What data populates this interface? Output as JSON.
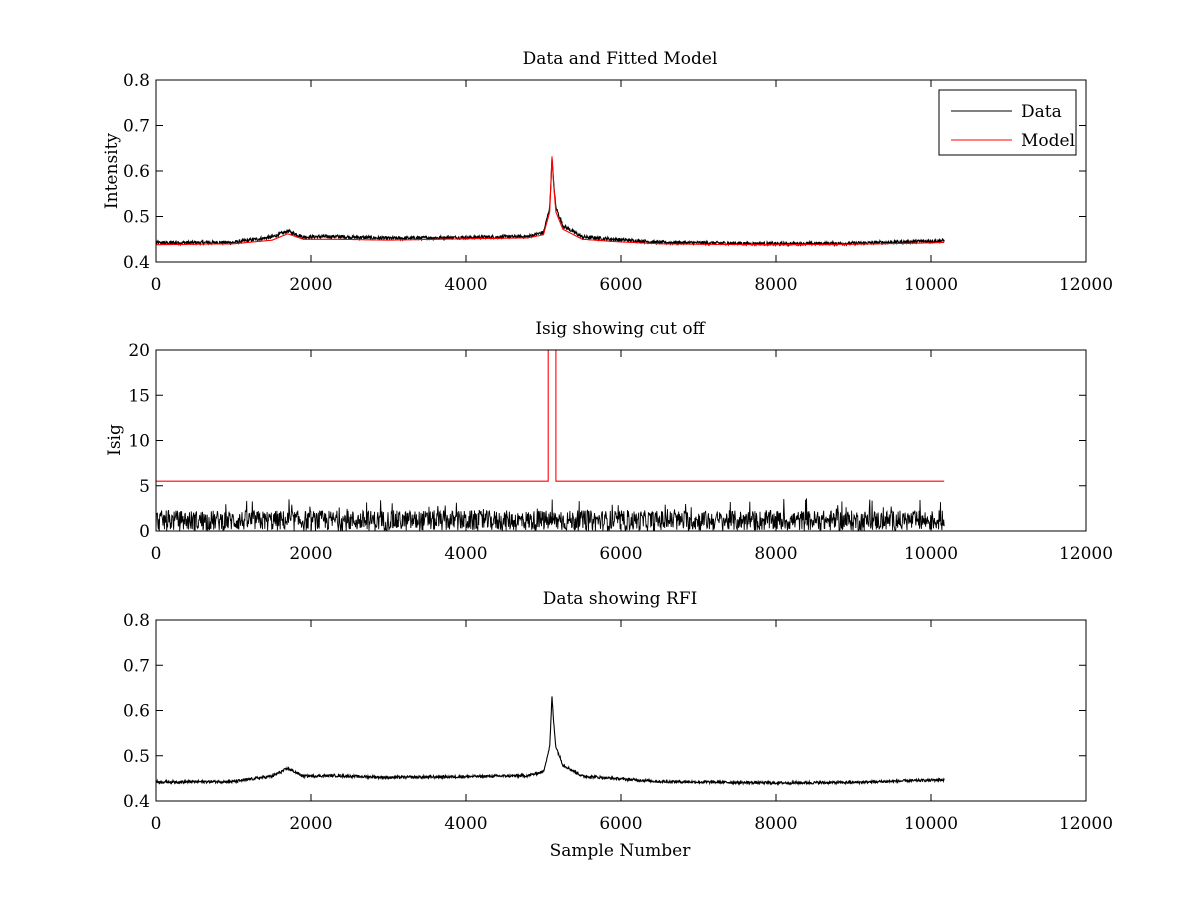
{
  "chart_data": [
    {
      "type": "line",
      "title": "Data and Fitted Model",
      "xlabel": "",
      "ylabel": "Intensity",
      "xlim": [
        0,
        12000
      ],
      "ylim": [
        0.4,
        0.8
      ],
      "xticks": [
        "0",
        "2000",
        "4000",
        "6000",
        "8000",
        "10000",
        "12000"
      ],
      "yticks": [
        "0.4",
        "0.5",
        "0.6",
        "0.7",
        "0.8"
      ],
      "grid": false,
      "legend": {
        "placement": "top-right",
        "entries": [
          "Data",
          "Model"
        ]
      },
      "series": [
        {
          "name": "Data",
          "color": "#000000",
          "kind": "noisy",
          "noise": 0.004,
          "x": [
            0,
            1000,
            1500,
            1700,
            1900,
            2300,
            3000,
            4000,
            4800,
            5000,
            5080,
            5110,
            5130,
            5160,
            5250,
            5500,
            5900,
            6500,
            7000,
            8000,
            9000,
            10000,
            10170
          ],
          "y": [
            0.442,
            0.443,
            0.455,
            0.468,
            0.455,
            0.456,
            0.452,
            0.454,
            0.456,
            0.465,
            0.52,
            0.63,
            0.575,
            0.52,
            0.48,
            0.455,
            0.45,
            0.443,
            0.442,
            0.44,
            0.441,
            0.446,
            0.447
          ]
        },
        {
          "name": "Model",
          "color": "#ff0000",
          "kind": "smooth",
          "x": [
            0,
            1000,
            1500,
            1700,
            1900,
            2300,
            3000,
            4000,
            4800,
            5000,
            5080,
            5110,
            5130,
            5160,
            5250,
            5500,
            5900,
            6500,
            7000,
            8000,
            9000,
            10000,
            10170
          ],
          "y": [
            0.438,
            0.44,
            0.448,
            0.462,
            0.45,
            0.45,
            0.448,
            0.451,
            0.453,
            0.46,
            0.51,
            0.632,
            0.57,
            0.51,
            0.472,
            0.45,
            0.445,
            0.44,
            0.439,
            0.438,
            0.439,
            0.442,
            0.443
          ]
        }
      ]
    },
    {
      "type": "line",
      "title": "Isig showing cut off",
      "xlabel": "",
      "ylabel": "Isig",
      "xlim": [
        0,
        12000
      ],
      "ylim": [
        0,
        20
      ],
      "xticks": [
        "0",
        "2000",
        "4000",
        "6000",
        "8000",
        "10000",
        "12000"
      ],
      "yticks": [
        "0",
        "5",
        "10",
        "15",
        "20"
      ],
      "grid": false,
      "series": [
        {
          "color": "#000000",
          "kind": "spiky",
          "x": [
            0,
            10170
          ],
          "y": [
            1.2,
            1.2
          ],
          "max": 3.6
        },
        {
          "color": "#ff0000",
          "kind": "step",
          "x": [
            0,
            5060,
            5060,
            5160,
            5160,
            10170
          ],
          "y": [
            5.5,
            5.5,
            20,
            20,
            5.5,
            5.5
          ]
        }
      ]
    },
    {
      "type": "line",
      "title": "Data showing RFI",
      "xlabel": "Sample Number",
      "ylabel": "",
      "xlim": [
        0,
        12000
      ],
      "ylim": [
        0.4,
        0.8
      ],
      "xticks": [
        "0",
        "2000",
        "4000",
        "6000",
        "8000",
        "10000",
        "12000"
      ],
      "yticks": [
        "0.4",
        "0.5",
        "0.6",
        "0.7",
        "0.8"
      ],
      "grid": false,
      "series": [
        {
          "color": "#000000",
          "kind": "noisy",
          "noise": 0.003,
          "x": [
            0,
            1000,
            1500,
            1700,
            1900,
            2300,
            3000,
            4000,
            4800,
            5000,
            5080,
            5110,
            5130,
            5160,
            5250,
            5500,
            5900,
            6500,
            7000,
            8000,
            9000,
            10000,
            10170
          ],
          "y": [
            0.442,
            0.443,
            0.455,
            0.472,
            0.455,
            0.456,
            0.452,
            0.454,
            0.456,
            0.465,
            0.52,
            0.632,
            0.575,
            0.52,
            0.48,
            0.455,
            0.45,
            0.443,
            0.442,
            0.44,
            0.441,
            0.446,
            0.447
          ]
        }
      ]
    }
  ]
}
